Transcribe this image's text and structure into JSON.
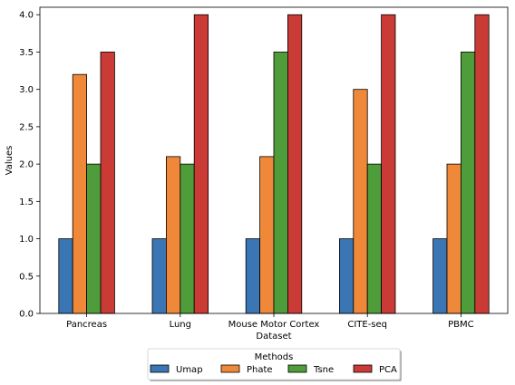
{
  "chart_data": {
    "type": "bar",
    "title": "",
    "xlabel": "Dataset",
    "ylabel": "Values",
    "categories": [
      "Pancreas",
      "Lung",
      "Mouse Motor Cortex",
      "CITE-seq",
      "PBMC"
    ],
    "series": [
      {
        "name": "Umap",
        "color": "#3a76b4",
        "values": [
          1.0,
          1.0,
          1.0,
          1.0,
          1.0
        ]
      },
      {
        "name": "Phate",
        "color": "#f0883a",
        "values": [
          3.2,
          2.1,
          2.1,
          3.0,
          2.0
        ]
      },
      {
        "name": "Tsne",
        "color": "#4f9c3a",
        "values": [
          2.0,
          2.0,
          3.5,
          2.0,
          3.5
        ]
      },
      {
        "name": "PCA",
        "color": "#c93b34",
        "values": [
          3.5,
          4.0,
          4.0,
          4.0,
          4.0
        ]
      }
    ],
    "ylim": [
      0,
      4.1
    ],
    "yticks": [
      0.0,
      0.5,
      1.0,
      1.5,
      2.0,
      2.5,
      3.0,
      3.5,
      4.0
    ],
    "ytick_labels": [
      "0.0",
      "0.5",
      "1.0",
      "1.5",
      "2.0",
      "2.5",
      "3.0",
      "3.5",
      "4.0"
    ],
    "grid": false,
    "legend": {
      "title": "Methods",
      "placement": "bottom-center",
      "columns": 4
    }
  }
}
